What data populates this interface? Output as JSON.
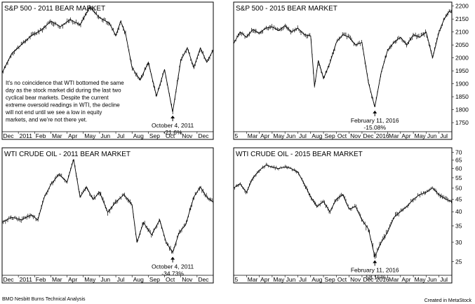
{
  "footer": {
    "source": "BMO Nesbitt Burns Technical Analysis",
    "credit": "Created in MetaStock"
  },
  "chart_data": [
    {
      "type": "line",
      "title": "S&P 500 - 2011 BEAR MARKET",
      "x_tick_labels": [
        "Dec",
        "2011",
        "Feb",
        "Mar",
        "Apr",
        "May",
        "Jun",
        "Jul",
        "Aug",
        "Sep",
        "Oct",
        "Nov",
        "Dec"
      ],
      "y_axis_side": "none",
      "ylim": [
        1020,
        1380
      ],
      "note": "It's no coincidence that WTI bottomed the same day as the stock market did during the last two cyclical bear markets. Despite the current extreme oversold readings in WTI, the decline will not end until we see a low in equity markets, and we're not there yet.",
      "annotation": {
        "label": "October 4, 2011",
        "change": "-21.6%",
        "x": 10.5,
        "value": 1075
      },
      "series": [
        {
          "x": [
            0,
            0.6,
            1.2,
            1.8,
            2.4,
            3.0,
            3.6,
            4.2,
            4.8,
            5.4,
            6.0,
            6.6,
            7.0,
            7.3,
            7.6,
            8.0,
            8.5,
            9.0,
            9.5,
            10.0,
            10.5,
            11.0,
            11.4,
            11.8,
            12.2,
            12.6,
            13.0
          ],
          "values": [
            1185,
            1240,
            1265,
            1290,
            1305,
            1330,
            1315,
            1335,
            1320,
            1370,
            1340,
            1325,
            1290,
            1330,
            1295,
            1200,
            1165,
            1215,
            1120,
            1195,
            1075,
            1220,
            1255,
            1200,
            1255,
            1215,
            1250
          ]
        }
      ]
    },
    {
      "type": "line",
      "title": "S&P 500 - 2015 BEAR MARKET",
      "x_tick_labels": [
        "5",
        "Mar",
        "Apr",
        "May",
        "Jun",
        "Jul",
        "Aug",
        "Sep",
        "Oct",
        "Nov",
        "Dec",
        "2016",
        "Mar",
        "Apr",
        "May",
        "Jun",
        "Jul"
      ],
      "y_axis_side": "right",
      "y_ticks": [
        1750,
        1800,
        1850,
        1900,
        1950,
        2000,
        2050,
        2100,
        2150,
        2200
      ],
      "ylim": [
        1715,
        2210
      ],
      "annotation": {
        "label": "February 11, 2016",
        "change": "-15.08%",
        "x": 11.0,
        "value": 1810
      },
      "series": [
        {
          "x": [
            0,
            0.5,
            1,
            1.5,
            2,
            2.5,
            3,
            3.5,
            4,
            4.5,
            5,
            5.5,
            6,
            6.3,
            6.6,
            7,
            7.5,
            8,
            8.5,
            9,
            9.5,
            10,
            10.5,
            11,
            11.5,
            12,
            12.5,
            13,
            13.5,
            14,
            14.5,
            15,
            15.5,
            16,
            16.4,
            16.8,
            17
          ],
          "values": [
            2055,
            2100,
            2080,
            2110,
            2095,
            2115,
            2120,
            2105,
            2125,
            2100,
            2115,
            2090,
            2085,
            1890,
            1990,
            1920,
            1980,
            2060,
            2090,
            2080,
            2050,
            2060,
            1905,
            1810,
            1945,
            2030,
            2060,
            2080,
            2050,
            2090,
            2080,
            2100,
            2000,
            2100,
            2150,
            2180,
            2175
          ]
        }
      ]
    },
    {
      "type": "line",
      "title": "WTI CRUDE OIL - 2011 BEAR MARKET",
      "x_tick_labels": [
        "Dec",
        "2011",
        "Feb",
        "Mar",
        "Apr",
        "May",
        "Jun",
        "Jul",
        "Aug",
        "Sep",
        "Oct",
        "Nov",
        "Dec"
      ],
      "y_axis_side": "none",
      "ylim": [
        67,
        117
      ],
      "annotation": {
        "label": "October 4, 2011",
        "change": "-34.73%",
        "x": 10.5,
        "value": 75.7
      },
      "series": [
        {
          "x": [
            0,
            0.6,
            1.2,
            1.8,
            2.2,
            2.6,
            3.0,
            3.5,
            4.0,
            4.4,
            4.8,
            5.2,
            5.6,
            6.0,
            6.5,
            7.0,
            7.5,
            8.0,
            8.3,
            8.7,
            9.2,
            9.7,
            10.1,
            10.5,
            10.9,
            11.3,
            11.8,
            12.2,
            12.6,
            13.0
          ],
          "values": [
            88,
            90,
            89,
            91,
            89,
            98,
            103,
            107,
            104,
            113,
            98,
            102,
            97,
            100,
            92,
            96,
            99,
            95,
            80,
            88,
            83,
            89,
            80,
            76,
            84,
            87,
            98,
            102,
            98,
            96
          ]
        }
      ]
    },
    {
      "type": "line",
      "title": "WTI CRUDE OIL - 2015 BEAR MARKET",
      "x_tick_labels": [
        "5",
        "Mar",
        "Apr",
        "May",
        "Jun",
        "Jul",
        "Aug",
        "Sep",
        "Oct",
        "Nov",
        "Dec",
        "2016",
        "Mar",
        "Apr",
        "May",
        "Jun",
        "Jul"
      ],
      "y_axis_side": "right",
      "y_scale": "log",
      "y_ticks": [
        25,
        30,
        35,
        40,
        45,
        50,
        55,
        60,
        65,
        70
      ],
      "ylim": [
        22,
        72
      ],
      "annotation": {
        "label": "February 11, 2016",
        "change": "-58.15%",
        "x": 11.0,
        "value": 26.2
      },
      "series": [
        {
          "x": [
            0,
            0.5,
            1,
            1.5,
            2,
            2.5,
            3,
            3.5,
            4,
            4.5,
            5,
            5.5,
            6,
            6.5,
            7,
            7.5,
            8,
            8.5,
            9,
            9.5,
            10,
            10.5,
            11,
            11.5,
            12,
            12.5,
            13,
            13.5,
            14,
            14.5,
            15,
            15.5,
            16,
            16.5,
            17
          ],
          "values": [
            50,
            52,
            48,
            55,
            59,
            62,
            61,
            60,
            61,
            60,
            58,
            52,
            46,
            42,
            44,
            40,
            45,
            47,
            41,
            42,
            37,
            34,
            26.2,
            30,
            33,
            38,
            40,
            42,
            45,
            47,
            48,
            50,
            47,
            45,
            44
          ]
        }
      ]
    }
  ]
}
